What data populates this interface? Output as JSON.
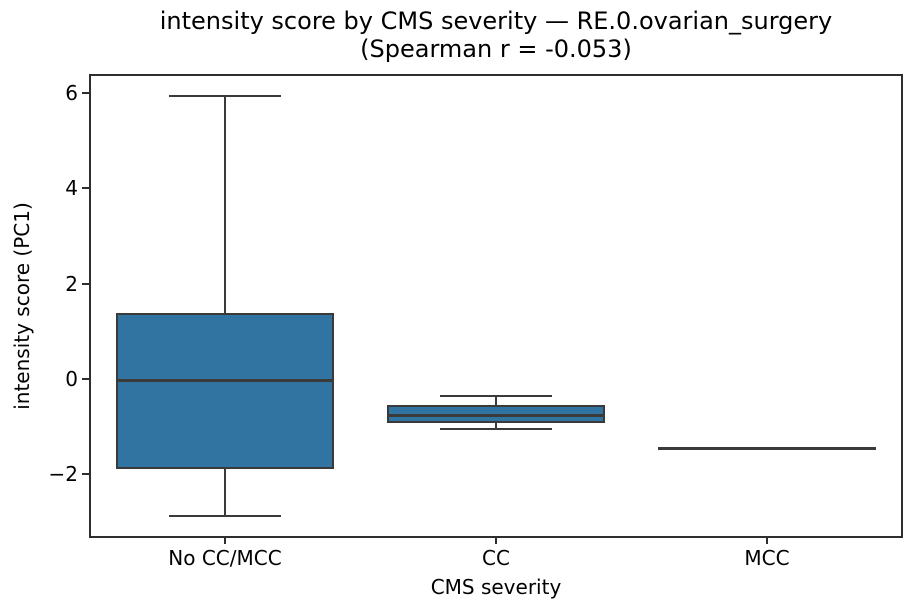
{
  "chart_data": {
    "type": "box",
    "title_line1": "intensity score by CMS severity — RE.0.ovarian_surgery",
    "title_line2": "(Spearman r = -0.053)",
    "spearman_r": -0.053,
    "xlabel": "CMS severity",
    "ylabel": "intensity score (PC1)",
    "categories": [
      "No CC/MCC",
      "CC",
      "MCC"
    ],
    "ylim": [
      -3.31,
      6.37
    ],
    "yticks": [
      {
        "value": 6,
        "label": "6"
      },
      {
        "value": 4,
        "label": "4"
      },
      {
        "value": 2,
        "label": "2"
      },
      {
        "value": 0,
        "label": "0"
      },
      {
        "value": -2,
        "label": "−2"
      }
    ],
    "grid": false,
    "legend": null,
    "boxes": [
      {
        "category": "No CC/MCC",
        "whislo": -2.86,
        "q1": -1.87,
        "med": -0.03,
        "q3": 1.39,
        "whishi": 5.93
      },
      {
        "category": "CC",
        "whislo": -1.05,
        "q1": -0.92,
        "med": -0.75,
        "q3": -0.54,
        "whishi": -0.36
      },
      {
        "category": "MCC",
        "whislo": -1.44,
        "q1": -1.44,
        "med": -1.44,
        "q3": -1.44,
        "whishi": -1.44
      }
    ],
    "colors": {
      "box_fill": "#3274a1",
      "box_edge": "#3a3a3a",
      "axis": "#2e2e2e",
      "text": "#000000"
    }
  }
}
